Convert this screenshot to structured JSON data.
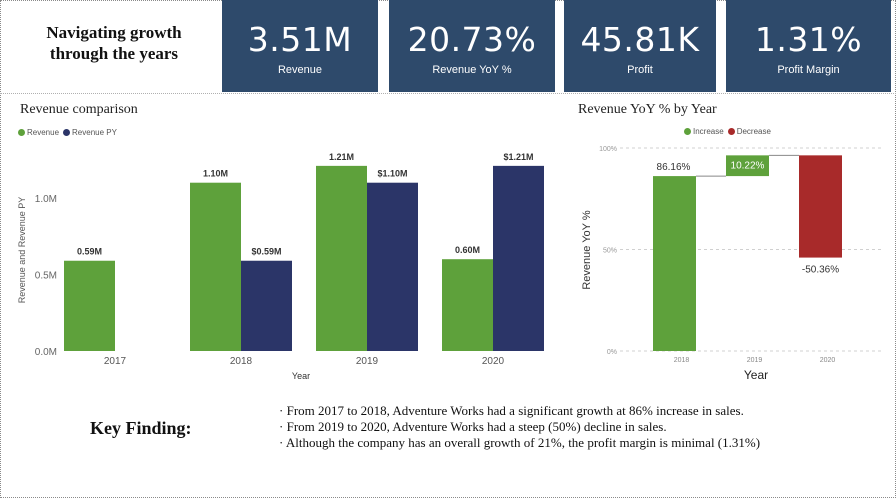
{
  "header": {
    "title": "Navigating growth through the years"
  },
  "kpis": [
    {
      "value": "3.51M",
      "label": "Revenue"
    },
    {
      "value": "20.73%",
      "label": "Revenue YoY %"
    },
    {
      "value": "45.81K",
      "label": "Profit"
    },
    {
      "value": "1.31%",
      "label": "Profit Margin"
    }
  ],
  "colors": {
    "kpi_bg": "#2e4a6b",
    "revenue": "#5ea13b",
    "revenue_py": "#2b3568",
    "increase": "#5ea13b",
    "decrease": "#a82a2a"
  },
  "chart_data": [
    {
      "type": "bar",
      "title": "Revenue comparison",
      "categories": [
        "2017",
        "2018",
        "2019",
        "2020"
      ],
      "series": [
        {
          "name": "Revenue",
          "values": [
            0.59,
            1.1,
            1.21,
            0.6
          ],
          "labels": [
            "0.59M",
            "1.10M",
            "1.21M",
            "0.60M"
          ]
        },
        {
          "name": "Revenue PY",
          "values": [
            null,
            0.59,
            1.1,
            1.21
          ],
          "labels": [
            "",
            "$0.59M",
            "$1.10M",
            "$1.21M"
          ]
        }
      ],
      "xlabel": "Year",
      "ylabel": "Revenue and Revenue PY",
      "yticks": [
        "0.0M",
        "0.5M",
        "1.0M"
      ],
      "ylim": [
        0,
        1.3
      ],
      "legend": "top-left"
    },
    {
      "type": "waterfall",
      "title": "Revenue YoY % by Year",
      "categories": [
        "2018",
        "2019",
        "2020"
      ],
      "values": [
        86.16,
        10.22,
        -50.36
      ],
      "labels": [
        "86.16%",
        "10.22%",
        "-50.36%"
      ],
      "legend_items": [
        "Increase",
        "Decrease"
      ],
      "xlabel": "Year",
      "ylabel": "Revenue YoY %",
      "yticks": [
        "0%",
        "50%",
        "100%"
      ],
      "ylim": [
        0,
        100
      ],
      "legend": "top-center"
    }
  ],
  "key_finding": {
    "label": "Key Finding:",
    "points": [
      "From 2017 to 2018, Adventure Works had a significant growth at 86% increase in sales.",
      "From 2019 to 2020, Adventure Works had a steep (50%) decline in sales.",
      "Although the company has an overall growth of 21%, the profit margin is minimal (1.31%)"
    ]
  }
}
